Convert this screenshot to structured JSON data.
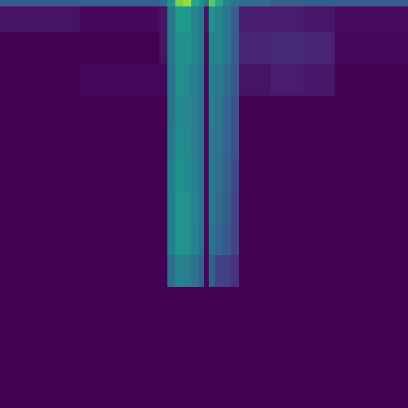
{
  "chart_data": {
    "type": "heatmap",
    "tick_labels": false,
    "color": "viridis",
    "color_range": [
      0,
      1
    ],
    "x_edges": [
      0,
      100,
      200,
      210,
      220,
      230,
      240,
      250,
      256,
      262,
      270,
      280,
      290,
      300,
      340,
      380,
      420,
      512
    ],
    "y_edges": [
      0,
      8,
      40,
      80,
      120,
      160,
      200,
      240,
      280,
      320,
      360,
      512
    ],
    "cells": [
      [
        0.3,
        0.3,
        0.35,
        0.5,
        0.8,
        0.85,
        0.6,
        0.5,
        0.4,
        0.75,
        0.6,
        0.45,
        0.4,
        0.35,
        0.3,
        0.3,
        0.3
      ],
      [
        0.05,
        0.02,
        0.05,
        0.4,
        0.55,
        0.55,
        0.45,
        0.4,
        0.05,
        0.5,
        0.45,
        0.4,
        0.3,
        0.08,
        0.08,
        0.06,
        0.03
      ],
      [
        0.0,
        0.0,
        0.05,
        0.4,
        0.5,
        0.5,
        0.45,
        0.4,
        0.03,
        0.45,
        0.45,
        0.4,
        0.3,
        0.1,
        0.12,
        0.1,
        0.02
      ],
      [
        0.0,
        0.02,
        0.02,
        0.38,
        0.5,
        0.48,
        0.42,
        0.38,
        0.03,
        0.42,
        0.4,
        0.35,
        0.28,
        0.05,
        0.08,
        0.06,
        0.0
      ],
      [
        0.0,
        0.0,
        0.0,
        0.38,
        0.48,
        0.46,
        0.42,
        0.36,
        0.02,
        0.42,
        0.38,
        0.33,
        0.25,
        0.0,
        0.0,
        0.0,
        0.0
      ],
      [
        0.0,
        0.0,
        0.0,
        0.4,
        0.48,
        0.47,
        0.42,
        0.36,
        0.02,
        0.4,
        0.38,
        0.32,
        0.25,
        0.0,
        0.0,
        0.0,
        0.0
      ],
      [
        0.0,
        0.0,
        0.0,
        0.42,
        0.5,
        0.48,
        0.43,
        0.37,
        0.02,
        0.4,
        0.36,
        0.3,
        0.22,
        0.0,
        0.0,
        0.0,
        0.0
      ],
      [
        0.0,
        0.0,
        0.0,
        0.42,
        0.52,
        0.5,
        0.44,
        0.38,
        0.02,
        0.4,
        0.35,
        0.3,
        0.2,
        0.0,
        0.0,
        0.0,
        0.0
      ],
      [
        0.0,
        0.0,
        0.0,
        0.42,
        0.52,
        0.5,
        0.44,
        0.36,
        0.02,
        0.38,
        0.33,
        0.28,
        0.2,
        0.0,
        0.0,
        0.0,
        0.0
      ],
      [
        0.0,
        0.0,
        0.0,
        0.35,
        0.45,
        0.42,
        0.38,
        0.3,
        0.02,
        0.3,
        0.2,
        0.18,
        0.15,
        0.0,
        0.0,
        0.0,
        0.0
      ],
      [
        0.0,
        0.0,
        0.0,
        0.0,
        0.0,
        0.0,
        0.0,
        0.0,
        0.0,
        0.0,
        0.0,
        0.0,
        0.0,
        0.0,
        0.0,
        0.0,
        0.0
      ]
    ]
  }
}
